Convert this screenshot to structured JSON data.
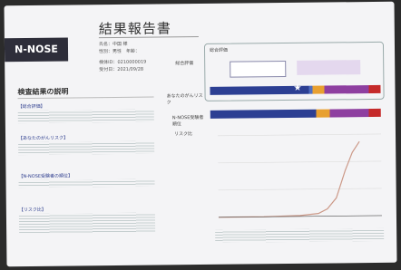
{
  "header": {
    "logo": "N-NOSE",
    "title": "結果報告書",
    "fields": [
      "氏名：中国 様",
      "性別：男性　年齢：",
      "検体ID：0210000019",
      "受付日：2021/09/28"
    ]
  },
  "explanation": {
    "title": "検査結果の説明",
    "headings": [
      "【総合評価】",
      "【あなたのがんリスク】",
      "【N-NOSE受験者の順位】",
      "【リスク比】"
    ]
  },
  "results": {
    "overall": "総合評価",
    "labels": [
      "あなたのがんリスク",
      "N-NOSE受験者順位",
      "リスク比"
    ]
  }
}
